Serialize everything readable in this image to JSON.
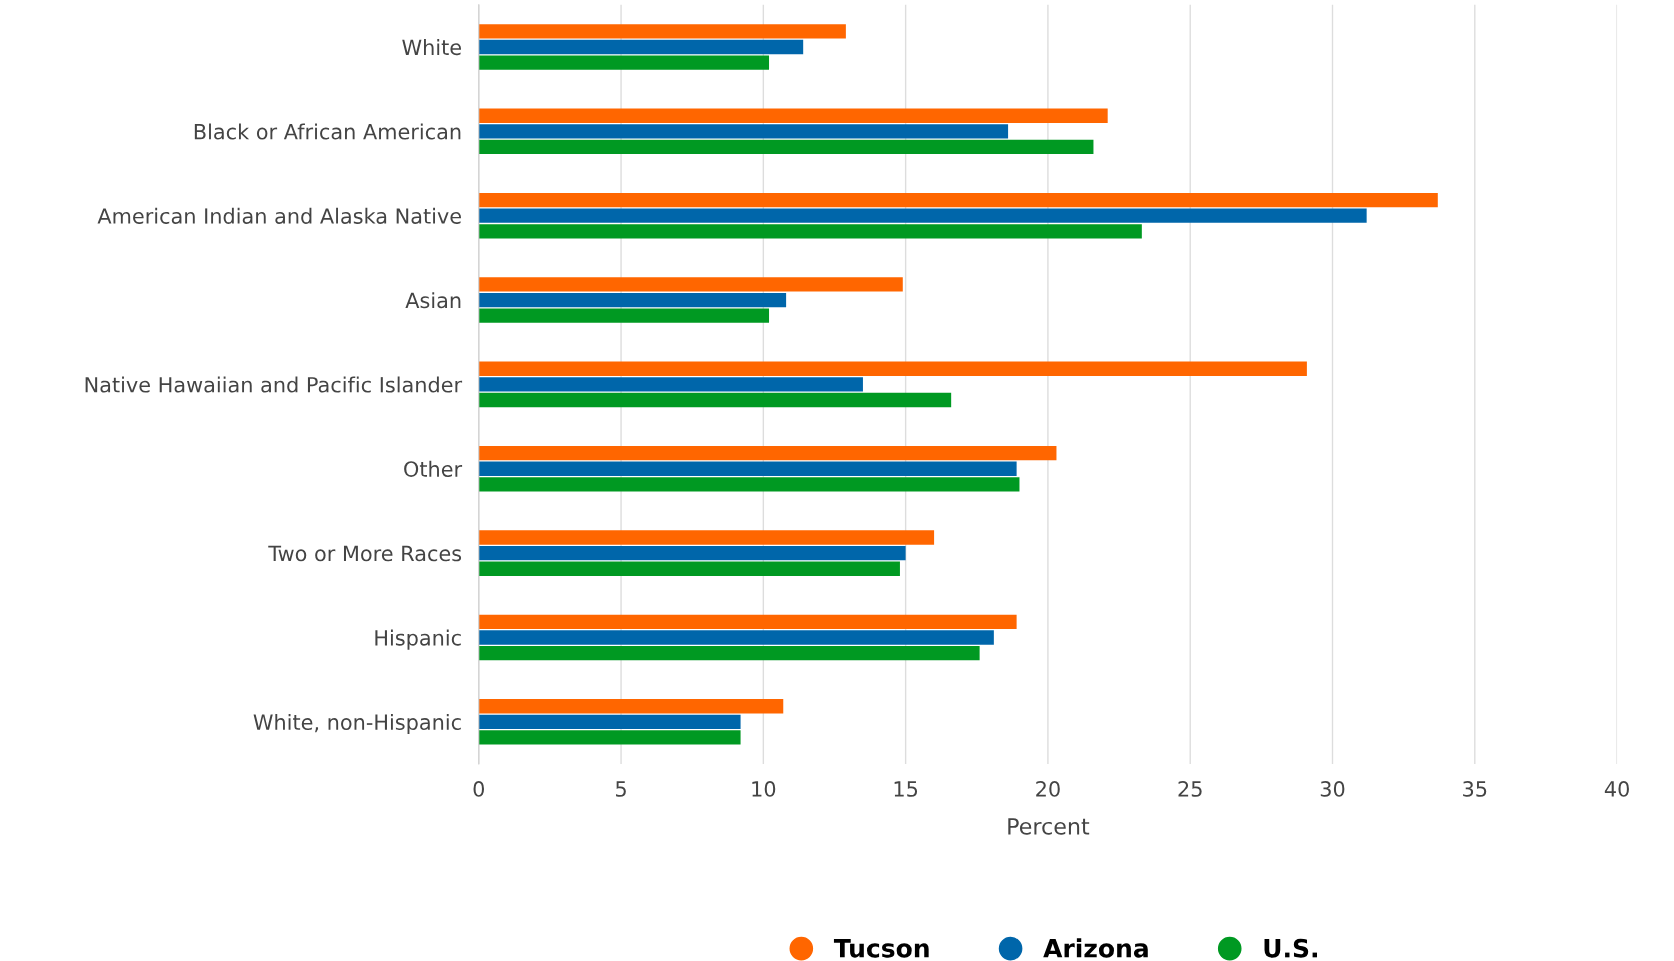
{
  "chart_data": {
    "type": "bar",
    "orientation": "horizontal",
    "xlabel": "Percent",
    "categories": [
      "White",
      "Black or African American",
      "American Indian and Alaska Native",
      "Asian",
      "Native Hawaiian and Pacific Islander",
      "Other",
      "Two or More Races",
      "Hispanic",
      "White, non-Hispanic"
    ],
    "series": [
      {
        "name": "Tucson",
        "color": "#ff6600",
        "values": [
          12.9,
          22.1,
          33.7,
          14.9,
          29.1,
          20.3,
          16.0,
          18.9,
          10.7
        ]
      },
      {
        "name": "Arizona",
        "color": "#0066aa",
        "values": [
          11.4,
          18.6,
          31.2,
          10.8,
          13.5,
          18.9,
          15.0,
          18.1,
          9.2
        ]
      },
      {
        "name": "U.S.",
        "color": "#009922",
        "values": [
          10.2,
          21.6,
          23.3,
          10.2,
          16.6,
          19.0,
          14.8,
          17.6,
          9.2
        ]
      }
    ],
    "xlim": [
      0,
      40
    ],
    "xticks": [
      0,
      5,
      10,
      15,
      20,
      25,
      30,
      35,
      40
    ],
    "grid": "x",
    "legend": "bottom"
  }
}
